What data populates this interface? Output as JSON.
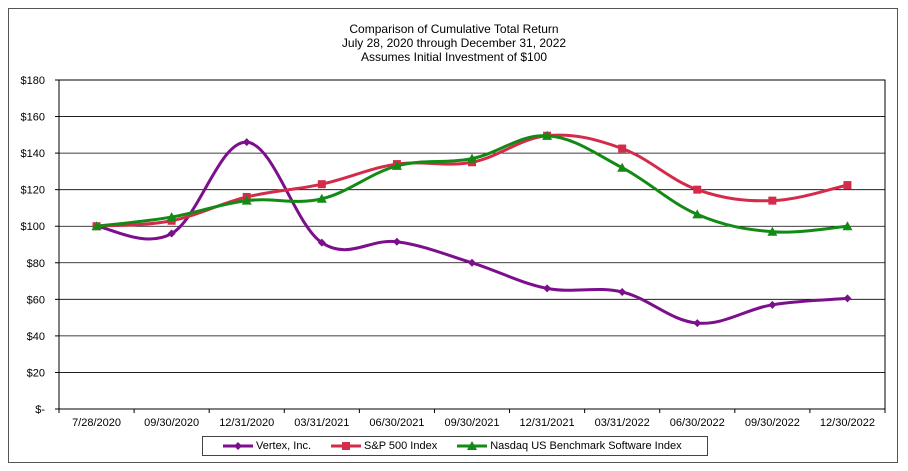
{
  "chart_data": {
    "type": "line",
    "title_lines": [
      "Comparison of Cumulative Total Return",
      "July 28, 2020 through December 31, 2022",
      "Assumes Initial Investment of $100"
    ],
    "categories": [
      "7/28/2020",
      "09/30/2020",
      "12/31/2020",
      "03/31/2021",
      "06/30/2021",
      "09/30/2021",
      "12/31/2021",
      "03/31/2022",
      "06/30/2022",
      "09/30/2022",
      "12/30/2022"
    ],
    "y_tick_labels": [
      "$-",
      "$20",
      "$40",
      "$60",
      "$80",
      "$100",
      "$120",
      "$140",
      "$160",
      "$180"
    ],
    "ylim": [
      0,
      180
    ],
    "y_step": 20,
    "grid": "horizontal",
    "legend_position": "bottom",
    "series": [
      {
        "name": "Vertex, Inc.",
        "color": "#7B0F8C",
        "marker": "diamond",
        "values": [
          100,
          96,
          146,
          91,
          91.5,
          80,
          66,
          64,
          47,
          57,
          60.5
        ]
      },
      {
        "name": "S&P 500 Index",
        "color": "#D42B4A",
        "marker": "square",
        "values": [
          100,
          103,
          116,
          123,
          134,
          135,
          149.5,
          142.5,
          120,
          114,
          122.5
        ]
      },
      {
        "name": "Nasdaq US Benchmark Software Index",
        "color": "#138A14",
        "marker": "triangle",
        "values": [
          100,
          105,
          114,
          115,
          133,
          137,
          149.5,
          132,
          106.5,
          97,
          100
        ]
      }
    ]
  }
}
